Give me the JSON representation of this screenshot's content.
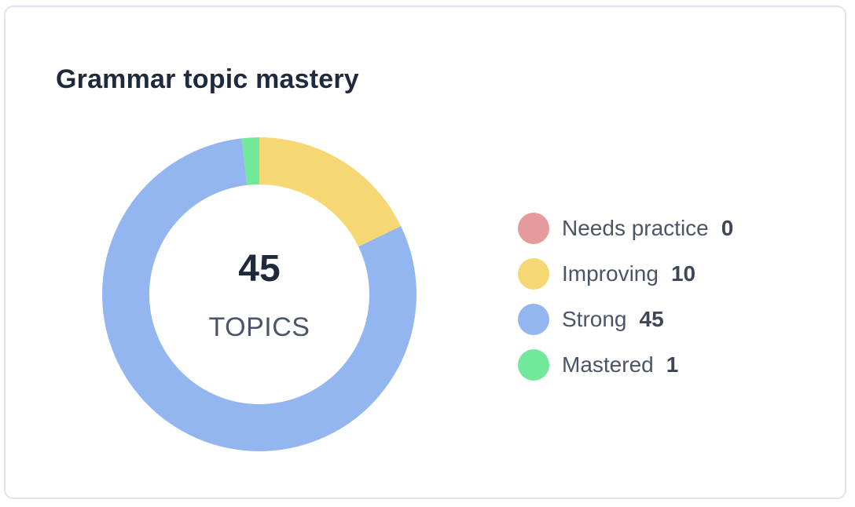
{
  "card": {
    "title": "Grammar topic mastery"
  },
  "center": {
    "value": "45",
    "label": "TOPICS"
  },
  "chart_data": {
    "type": "pie",
    "variant": "donut",
    "title": "Grammar topic mastery",
    "categories": [
      "Needs practice",
      "Improving",
      "Strong",
      "Mastered"
    ],
    "values": [
      0,
      10,
      45,
      1
    ],
    "colors": [
      "#e59a9c",
      "#f7d774",
      "#93b6f0",
      "#72e89a"
    ],
    "legend": "right",
    "center_text": [
      "45",
      "TOPICS"
    ]
  },
  "legend": [
    {
      "label": "Needs practice",
      "value": "0",
      "color": "#e59a9c"
    },
    {
      "label": "Improving",
      "value": "10",
      "color": "#f7d774"
    },
    {
      "label": "Strong",
      "value": "45",
      "color": "#93b6f0"
    },
    {
      "label": "Mastered",
      "value": "1",
      "color": "#72e89a"
    }
  ]
}
